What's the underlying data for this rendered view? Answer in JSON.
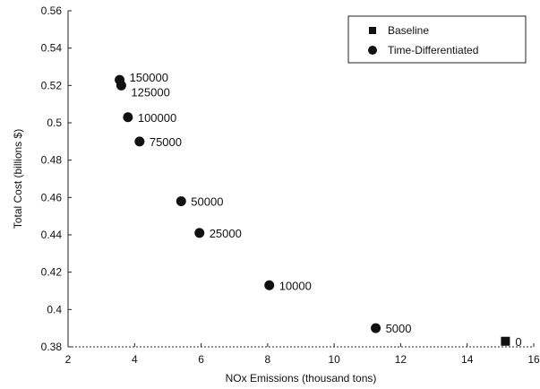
{
  "chart_data": {
    "type": "scatter",
    "xlabel": "NOx Emissions (thousand tons)",
    "ylabel": "Total Cost (billions $)",
    "xlim": [
      2,
      16
    ],
    "ylim": [
      0.38,
      0.56
    ],
    "xticks": [
      "2",
      "4",
      "6",
      "8",
      "10",
      "12",
      "14",
      "16"
    ],
    "yticks": [
      "0.38",
      "0.4",
      "0.42",
      "0.44",
      "0.46",
      "0.48",
      "0.5",
      "0.52",
      "0.54",
      "0.56"
    ],
    "legend": {
      "position": "top-right"
    },
    "series": [
      {
        "name": "Baseline",
        "marker": "square",
        "points": [
          {
            "x": 15.15,
            "y": 0.383,
            "label": "0"
          }
        ]
      },
      {
        "name": "Time-Differentiated",
        "marker": "circle",
        "points": [
          {
            "x": 3.55,
            "y": 0.523,
            "label": "150000"
          },
          {
            "x": 3.6,
            "y": 0.52,
            "label": "125000"
          },
          {
            "x": 3.8,
            "y": 0.503,
            "label": "100000"
          },
          {
            "x": 4.15,
            "y": 0.49,
            "label": "75000"
          },
          {
            "x": 5.4,
            "y": 0.458,
            "label": "50000"
          },
          {
            "x": 5.95,
            "y": 0.441,
            "label": "25000"
          },
          {
            "x": 8.05,
            "y": 0.413,
            "label": "10000"
          },
          {
            "x": 11.25,
            "y": 0.39,
            "label": "5000"
          }
        ]
      }
    ]
  }
}
